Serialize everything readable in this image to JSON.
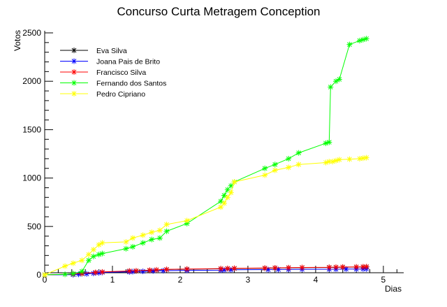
{
  "chart_data": {
    "type": "line",
    "title": "Concurso Curta Metragem Conception",
    "xlabel": "Dias",
    "ylabel": "Votos",
    "xlim": [
      0,
      5.3
    ],
    "ylim": [
      0,
      2500
    ],
    "xticks": [
      0,
      1,
      2,
      3,
      4,
      5
    ],
    "yticks": [
      0,
      500,
      1000,
      1500,
      2000,
      2500
    ],
    "tick_labels_x": [
      "0",
      "1",
      "2",
      "3",
      "4",
      "5"
    ],
    "tick_labels_y": [
      "0",
      "500",
      "1000",
      "1500",
      "2000",
      "2500"
    ],
    "grid": false,
    "legend_position": "top-left",
    "series": [
      {
        "name": "Eva Silva",
        "color": "#000000",
        "x": [
          0.0,
          0.42,
          0.55,
          0.75,
          0.85,
          1.25,
          1.35,
          1.55,
          1.65,
          1.8,
          2.1,
          2.6,
          2.7,
          2.8,
          3.25,
          3.4,
          3.6,
          3.8,
          4.2,
          4.3,
          4.4,
          4.6,
          4.7,
          4.75
        ],
        "y": [
          0,
          5,
          12,
          22,
          28,
          38,
          40,
          45,
          50,
          55,
          58,
          62,
          64,
          66,
          68,
          70,
          72,
          74,
          76,
          78,
          79,
          80,
          81,
          82
        ]
      },
      {
        "name": "Joana Pais de Brito",
        "color": "#0000ff",
        "x": [
          0.0,
          0.42,
          0.5,
          0.62,
          0.72,
          0.8,
          0.85,
          1.25,
          1.3,
          1.45,
          1.6,
          1.75,
          2.1,
          2.6,
          2.65,
          2.75,
          3.3,
          3.45,
          3.6,
          3.8,
          4.2,
          4.3,
          4.45,
          4.6,
          4.7,
          4.75
        ],
        "y": [
          0,
          2,
          5,
          10,
          15,
          20,
          25,
          30,
          33,
          36,
          40,
          43,
          46,
          48,
          50,
          52,
          54,
          55,
          56,
          57,
          58,
          58,
          59,
          59,
          60,
          60
        ]
      },
      {
        "name": "Francisco Silva",
        "color": "#ff0000",
        "x": [
          0.0,
          0.42,
          0.55,
          0.75,
          0.85,
          1.25,
          1.35,
          1.55,
          1.65,
          1.8,
          2.1,
          2.6,
          2.7,
          2.8,
          3.25,
          3.4,
          3.6,
          3.8,
          4.2,
          4.3,
          4.4,
          4.6,
          4.7,
          4.75
        ],
        "y": [
          0,
          8,
          15,
          25,
          30,
          40,
          42,
          48,
          52,
          56,
          60,
          64,
          66,
          68,
          70,
          72,
          74,
          76,
          78,
          80,
          81,
          82,
          83,
          84
        ]
      },
      {
        "name": "Fernando dos Santos",
        "color": "#00ff00",
        "x": [
          0.0,
          0.3,
          0.42,
          0.55,
          0.65,
          0.72,
          0.8,
          0.85,
          1.2,
          1.3,
          1.45,
          1.58,
          1.7,
          1.8,
          2.1,
          2.6,
          2.65,
          2.7,
          2.75,
          2.8,
          3.25,
          3.4,
          3.6,
          3.75,
          4.15,
          4.2,
          4.22,
          4.3,
          4.35,
          4.5,
          4.65,
          4.7,
          4.75
        ],
        "y": [
          0,
          5,
          12,
          35,
          150,
          190,
          210,
          220,
          270,
          290,
          330,
          365,
          380,
          450,
          530,
          760,
          820,
          880,
          920,
          960,
          1100,
          1140,
          1200,
          1260,
          1360,
          1370,
          1940,
          2000,
          2020,
          2380,
          2420,
          2430,
          2440
        ]
      },
      {
        "name": "Pedro Cipriano",
        "color": "#ffff00",
        "x": [
          0.0,
          0.3,
          0.42,
          0.55,
          0.65,
          0.72,
          0.8,
          0.85,
          1.2,
          1.3,
          1.45,
          1.58,
          1.7,
          1.8,
          2.1,
          2.6,
          2.65,
          2.7,
          2.75,
          2.8,
          3.25,
          3.4,
          3.6,
          3.75,
          4.15,
          4.2,
          4.25,
          4.3,
          4.35,
          4.5,
          4.65,
          4.7,
          4.75
        ],
        "y": [
          0,
          90,
          120,
          150,
          210,
          260,
          310,
          330,
          340,
          380,
          410,
          440,
          460,
          520,
          560,
          700,
          740,
          800,
          850,
          960,
          1030,
          1080,
          1110,
          1140,
          1160,
          1170,
          1170,
          1180,
          1190,
          1195,
          1200,
          1205,
          1210
        ]
      }
    ]
  }
}
